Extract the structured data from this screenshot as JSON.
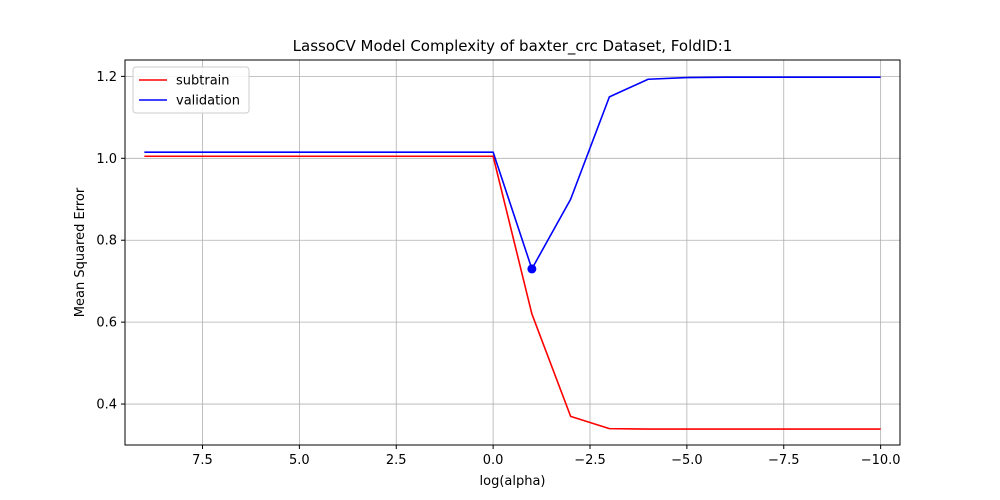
{
  "chart_data": {
    "type": "line",
    "title": "LassoCV Model Complexity of baxter_crc Dataset, FoldID:1",
    "xlabel": "log(alpha)",
    "ylabel": "Mean Squared Error",
    "xlim": [
      9.5,
      -10.5
    ],
    "ylim": [
      0.3,
      1.24
    ],
    "x_inverted": true,
    "grid": true,
    "legend_position": "top-left",
    "xticks": [
      7.5,
      5.0,
      2.5,
      0.0,
      -2.5,
      -5.0,
      -7.5,
      -10.0
    ],
    "xtick_labels": [
      "7.5",
      "5.0",
      "2.5",
      "0.0",
      "−2.5",
      "−5.0",
      "−7.5",
      "−10.0"
    ],
    "yticks": [
      0.4,
      0.6,
      0.8,
      1.0,
      1.2
    ],
    "ytick_labels": [
      "0.4",
      "0.6",
      "0.8",
      "1.0",
      "1.2"
    ],
    "x": [
      9,
      8,
      7,
      6,
      5,
      4,
      3,
      2,
      1,
      0,
      -1,
      -2,
      -3,
      -4,
      -5,
      -6,
      -7,
      -8,
      -9,
      -10
    ],
    "series": [
      {
        "name": "subtrain",
        "color": "#ff0000",
        "values": [
          1.005,
          1.005,
          1.005,
          1.005,
          1.005,
          1.005,
          1.005,
          1.005,
          1.005,
          1.005,
          0.62,
          0.37,
          0.34,
          0.339,
          0.339,
          0.339,
          0.339,
          0.339,
          0.339,
          0.339
        ]
      },
      {
        "name": "validation",
        "color": "#0000ff",
        "values": [
          1.015,
          1.015,
          1.015,
          1.015,
          1.015,
          1.015,
          1.015,
          1.015,
          1.015,
          1.015,
          0.73,
          0.9,
          1.15,
          1.193,
          1.197,
          1.198,
          1.198,
          1.198,
          1.198,
          1.198
        ]
      }
    ],
    "highlight_point": {
      "series": "validation",
      "x": -1,
      "y": 0.73,
      "color": "#0000ff"
    }
  }
}
